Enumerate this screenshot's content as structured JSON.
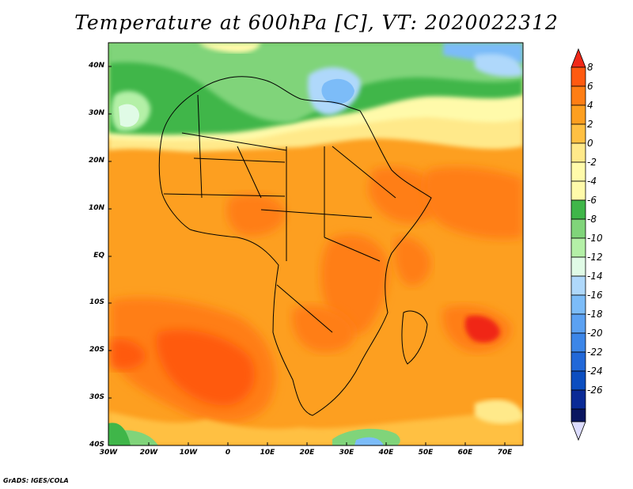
{
  "title": "Temperature at 600hPa [C], VT: 2020022312",
  "credit": "GrADS: IGES/COLA",
  "map": {
    "projection": "latlon",
    "lon_range": [
      -30,
      75
    ],
    "lat_range": [
      -40,
      45
    ],
    "variable": "Temperature at 600hPa",
    "units": "C",
    "valid_time": "2020022312",
    "lat_ticks": [
      "40N",
      "30N",
      "20N",
      "10N",
      "EQ",
      "10S",
      "20S",
      "30S",
      "40S"
    ],
    "lon_ticks": [
      "30W",
      "20W",
      "10W",
      "0",
      "10E",
      "20E",
      "30E",
      "40E",
      "50E",
      "60E",
      "70E"
    ]
  },
  "colorbar": {
    "labels": [
      "8",
      "6",
      "4",
      "2",
      "0",
      "-2",
      "-4",
      "-6",
      "-8",
      "-10",
      "-12",
      "-14",
      "-16",
      "-18",
      "-20",
      "-22",
      "-24",
      "-26"
    ],
    "colors": [
      "#f02818",
      "#ff5a10",
      "#ff7e14",
      "#fd9f20",
      "#ffc043",
      "#ffe98a",
      "#fffaaa",
      "#3fb649",
      "#80d47a",
      "#b4f0a7",
      "#e0fbe6",
      "#afd8fb",
      "#7cbcf8",
      "#5ba1f2",
      "#3c86e8",
      "#2168d8",
      "#0c4ec0",
      "#0a2a96",
      "#0a1660",
      "#dcdcff"
    ]
  }
}
